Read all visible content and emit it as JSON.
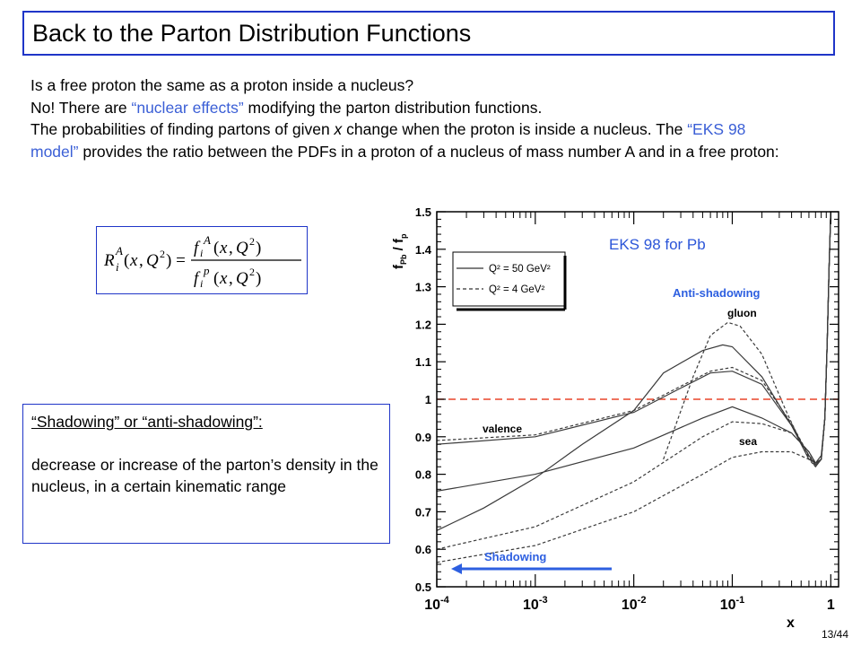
{
  "title": "Back to the Parton Distribution Functions",
  "body": {
    "line1": "Is a free proton the same as a proton inside a nucleus?",
    "line2_pre": "No! There are ",
    "line2_accent": "“nuclear effects”",
    "line2_post": " modifying the parton distribution functions.",
    "line3_pre": "The probabilities of finding partons of given ",
    "line3_x": "x",
    "line3_post": " change when the proton is inside a nucleus. The ",
    "line3_accent": "“EKS 98 model”",
    "line3_tail": " provides the ratio between the PDFs in a proton of a nucleus of mass number A and in a free proton:"
  },
  "shadowing_box": {
    "heading": "“Shadowing” or “anti-shadowing”:",
    "text": "decrease or increase of the parton’s density in the nucleus, in a certain kinematic range"
  },
  "page_number": "13/44",
  "colors": {
    "frame": "#1f35c8",
    "accent_text": "#3b5fd6",
    "chart_title": "#2b55d8",
    "annotation": "#2d5fe0",
    "reference_line": "#e8452a"
  },
  "chart_data": {
    "type": "line",
    "title": "EKS 98 for Pb",
    "xlabel": "x",
    "ylabel": "f_Pb / f_p",
    "x_scale": "log",
    "xlim": [
      0.0001,
      1.2
    ],
    "ylim": [
      0.5,
      1.5
    ],
    "x_ticks": [
      0.0001,
      0.001,
      0.01,
      0.1,
      1
    ],
    "x_tick_labels": [
      [
        "10",
        "-4"
      ],
      [
        "10",
        "-3"
      ],
      [
        "10",
        "-2"
      ],
      [
        "10",
        "-1"
      ],
      [
        "1",
        ""
      ]
    ],
    "y_ticks": [
      0.5,
      0.6,
      0.7,
      0.8,
      0.9,
      1,
      1.1,
      1.2,
      1.3,
      1.4,
      1.5
    ],
    "y_tick_labels": [
      "0.5",
      "0.6",
      "0.7",
      "0.8",
      "0.9",
      "1",
      "1.1",
      "1.2",
      "1.3",
      "1.4",
      "1.5"
    ],
    "reference_line": 1,
    "legend": {
      "position": "top-left",
      "solid": "Q² = 50 GeV²",
      "dashed": "Q² = 4 GeV²"
    },
    "curve_labels": {
      "gluon": "gluon",
      "valence": "valence",
      "sea": "sea"
    },
    "annotations": {
      "anti_shadowing": "Anti-shadowing",
      "shadowing": "Shadowing"
    },
    "series": [
      {
        "key": "gluon",
        "style": "solid",
        "points": [
          [
            0.0001,
            0.65
          ],
          [
            0.0003,
            0.71
          ],
          [
            0.001,
            0.79
          ],
          [
            0.003,
            0.88
          ],
          [
            0.01,
            0.97
          ],
          [
            0.02,
            1.07
          ],
          [
            0.05,
            1.13
          ],
          [
            0.08,
            1.145
          ],
          [
            0.1,
            1.14
          ],
          [
            0.2,
            1.06
          ],
          [
            0.4,
            0.93
          ],
          [
            0.6,
            0.84
          ],
          [
            0.7,
            0.83
          ],
          [
            0.8,
            0.85
          ],
          [
            0.87,
            0.95
          ],
          [
            0.92,
            1.15
          ],
          [
            0.96,
            1.35
          ],
          [
            1.0,
            1.5
          ]
        ]
      },
      {
        "key": "gluon",
        "style": "dashed",
        "points": [
          [
            0.02,
            0.84
          ],
          [
            0.04,
            1.06
          ],
          [
            0.06,
            1.17
          ],
          [
            0.09,
            1.205
          ],
          [
            0.12,
            1.195
          ],
          [
            0.2,
            1.12
          ],
          [
            0.35,
            0.97
          ],
          [
            0.55,
            0.86
          ],
          [
            0.7,
            0.82
          ],
          [
            0.8,
            0.84
          ],
          [
            0.87,
            0.95
          ],
          [
            0.92,
            1.15
          ],
          [
            0.96,
            1.35
          ],
          [
            1.0,
            1.5
          ]
        ]
      },
      {
        "key": "valence",
        "style": "solid",
        "points": [
          [
            0.0001,
            0.88
          ],
          [
            0.001,
            0.9
          ],
          [
            0.01,
            0.965
          ],
          [
            0.03,
            1.03
          ],
          [
            0.06,
            1.07
          ],
          [
            0.1,
            1.075
          ],
          [
            0.2,
            1.04
          ],
          [
            0.4,
            0.93
          ],
          [
            0.6,
            0.85
          ],
          [
            0.7,
            0.825
          ],
          [
            0.8,
            0.84
          ],
          [
            0.87,
            0.95
          ],
          [
            0.92,
            1.15
          ],
          [
            0.96,
            1.35
          ],
          [
            1.0,
            1.5
          ]
        ]
      },
      {
        "key": "valence",
        "style": "dashed",
        "points": [
          [
            0.0001,
            0.89
          ],
          [
            0.001,
            0.905
          ],
          [
            0.01,
            0.97
          ],
          [
            0.03,
            1.035
          ],
          [
            0.06,
            1.075
          ],
          [
            0.1,
            1.085
          ],
          [
            0.2,
            1.05
          ],
          [
            0.4,
            0.935
          ],
          [
            0.6,
            0.85
          ],
          [
            0.7,
            0.83
          ],
          [
            0.8,
            0.84
          ],
          [
            0.87,
            0.95
          ],
          [
            0.92,
            1.15
          ],
          [
            0.96,
            1.35
          ],
          [
            1.0,
            1.5
          ]
        ]
      },
      {
        "key": "sea",
        "style": "solid",
        "points": [
          [
            0.0001,
            0.755
          ],
          [
            0.001,
            0.8
          ],
          [
            0.01,
            0.87
          ],
          [
            0.05,
            0.95
          ],
          [
            0.1,
            0.98
          ],
          [
            0.2,
            0.95
          ],
          [
            0.4,
            0.91
          ],
          [
            0.6,
            0.86
          ],
          [
            0.7,
            0.83
          ],
          [
            0.8,
            0.84
          ],
          [
            0.87,
            0.95
          ],
          [
            0.92,
            1.15
          ],
          [
            0.96,
            1.35
          ],
          [
            1.0,
            1.5
          ]
        ]
      },
      {
        "key": "sea",
        "style": "dashed",
        "points": [
          [
            0.0001,
            0.6
          ],
          [
            0.001,
            0.66
          ],
          [
            0.01,
            0.78
          ],
          [
            0.05,
            0.9
          ],
          [
            0.1,
            0.94
          ],
          [
            0.2,
            0.935
          ],
          [
            0.4,
            0.91
          ],
          [
            0.6,
            0.86
          ],
          [
            0.7,
            0.83
          ],
          [
            0.8,
            0.84
          ],
          [
            0.87,
            0.95
          ],
          [
            0.92,
            1.15
          ],
          [
            0.96,
            1.35
          ],
          [
            1.0,
            1.5
          ]
        ]
      },
      {
        "key": "gluon-low",
        "style": "dashed",
        "points": [
          [
            0.0001,
            0.565
          ],
          [
            0.001,
            0.61
          ],
          [
            0.01,
            0.7
          ],
          [
            0.05,
            0.8
          ],
          [
            0.1,
            0.845
          ],
          [
            0.2,
            0.86
          ],
          [
            0.4,
            0.86
          ],
          [
            0.6,
            0.84
          ],
          [
            0.7,
            0.82
          ],
          [
            0.8,
            0.84
          ],
          [
            0.87,
            0.95
          ],
          [
            0.92,
            1.15
          ],
          [
            0.96,
            1.35
          ],
          [
            1.0,
            1.5
          ]
        ]
      }
    ]
  }
}
